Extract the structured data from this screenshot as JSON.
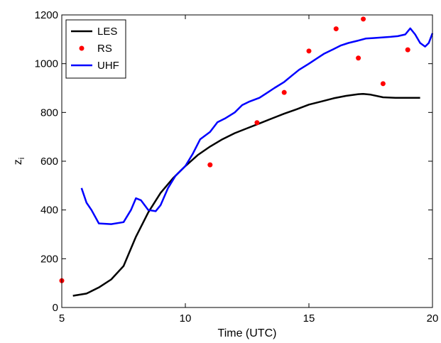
{
  "chart_data": {
    "type": "line",
    "title": "",
    "xlabel": "Time (UTC)",
    "ylabel": "z",
    "ylabel_subscript": "i",
    "xlim": [
      5,
      20
    ],
    "ylim": [
      0,
      1200
    ],
    "xticks": [
      "5",
      "10",
      "15",
      "20"
    ],
    "yticks": [
      "0",
      "200",
      "400",
      "600",
      "800",
      "1000",
      "1200"
    ],
    "grid": false,
    "legend_position": "top-left",
    "series": [
      {
        "name": "LES",
        "kind": "line",
        "color": "#000000",
        "x": [
          5.45,
          6.0,
          6.5,
          7.0,
          7.5,
          8.0,
          8.5,
          9.0,
          9.5,
          10.0,
          10.5,
          11.0,
          11.5,
          12.0,
          12.5,
          13.0,
          13.5,
          14.0,
          14.5,
          15.0,
          15.5,
          16.0,
          16.5,
          17.0,
          17.2,
          17.5,
          18.0,
          18.5,
          19.0,
          19.5
        ],
        "y": [
          48,
          57,
          82,
          115,
          170,
          290,
          390,
          470,
          530,
          580,
          625,
          660,
          690,
          715,
          735,
          755,
          775,
          795,
          813,
          832,
          845,
          858,
          868,
          875,
          876,
          873,
          862,
          860,
          860,
          860
        ]
      },
      {
        "name": "RS",
        "kind": "scatter",
        "color": "#ff0000",
        "x": [
          5.0,
          11.0,
          12.9,
          14.0,
          15.0,
          16.1,
          17.0,
          17.2,
          18.0,
          19.0
        ],
        "y": [
          110,
          585,
          758,
          882,
          1052,
          1143,
          1023,
          1183,
          918,
          1057
        ]
      },
      {
        "name": "UHF",
        "kind": "line",
        "color": "#0000ff",
        "x": [
          5.8,
          6.0,
          6.2,
          6.5,
          7.0,
          7.5,
          7.8,
          8.0,
          8.2,
          8.5,
          8.8,
          9.0,
          9.3,
          9.6,
          10.0,
          10.3,
          10.6,
          11.0,
          11.3,
          11.6,
          12.0,
          12.3,
          12.6,
          13.0,
          13.3,
          13.6,
          14.0,
          14.3,
          14.6,
          15.0,
          15.3,
          15.6,
          16.0,
          16.3,
          16.6,
          17.0,
          17.3,
          17.6,
          18.0,
          18.3,
          18.6,
          18.9,
          19.1,
          19.3,
          19.5,
          19.7,
          19.85,
          20.0
        ],
        "y": [
          490,
          430,
          400,
          345,
          342,
          350,
          400,
          448,
          440,
          400,
          395,
          420,
          490,
          540,
          580,
          630,
          690,
          720,
          760,
          775,
          800,
          830,
          845,
          860,
          880,
          900,
          925,
          950,
          975,
          1000,
          1020,
          1040,
          1060,
          1075,
          1085,
          1095,
          1103,
          1105,
          1108,
          1110,
          1113,
          1120,
          1145,
          1120,
          1085,
          1070,
          1085,
          1125
        ]
      }
    ]
  }
}
